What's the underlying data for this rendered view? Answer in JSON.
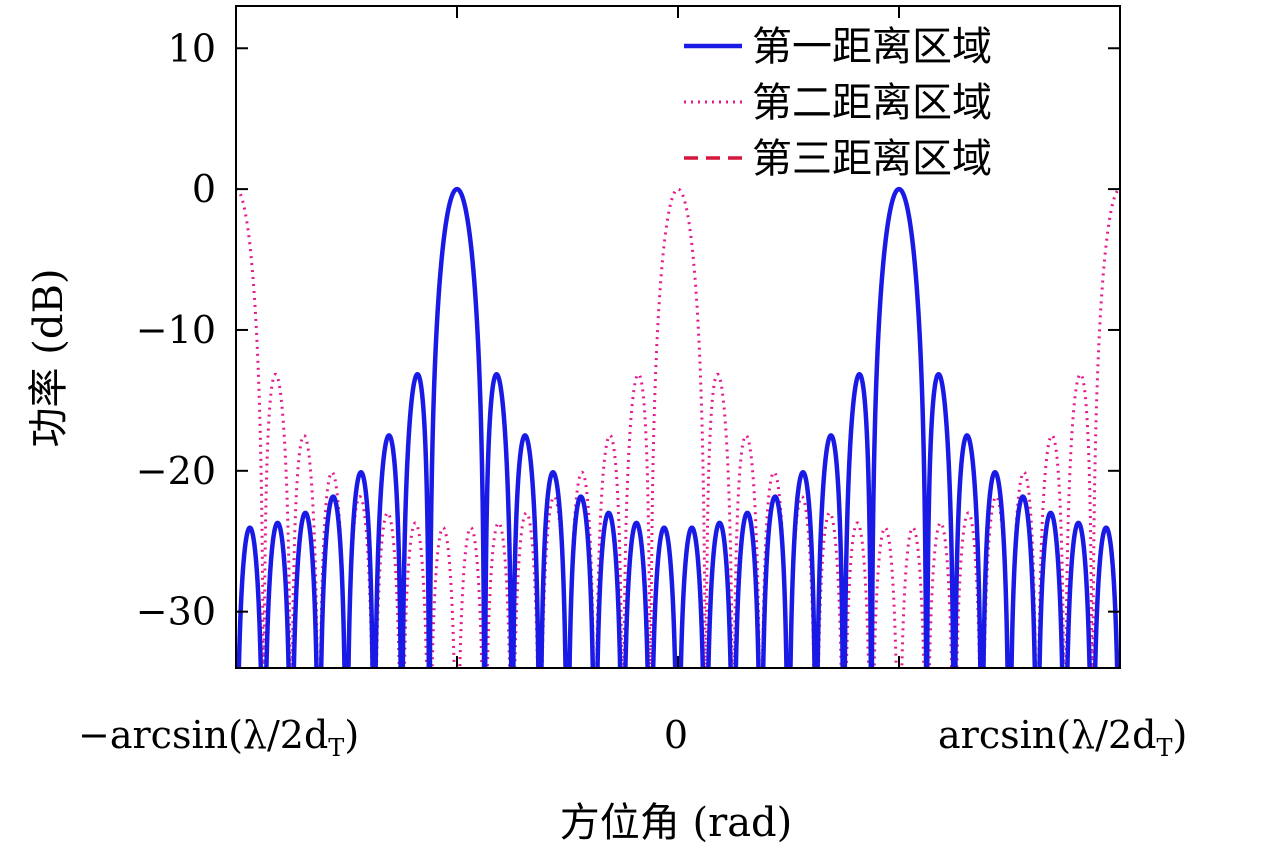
{
  "chart_data": {
    "type": "line",
    "title": "",
    "xlabel": "方位角 (rad)",
    "ylabel": "功率 (dB)",
    "x_tick_labels": {
      "left": "−arcsin(λ/2d",
      "left_sub": "T",
      "left_close": ")",
      "center": "0",
      "right": "arcsin(λ/2d",
      "right_sub": "T",
      "right_close": ")"
    },
    "xlim": [
      -1,
      1
    ],
    "ylim": [
      -34,
      13
    ],
    "y_ticks": [
      10,
      0,
      -10,
      -20,
      -30
    ],
    "y_tick_labels": [
      "10",
      "0",
      "−10",
      "−20",
      "−30"
    ],
    "x_ticks": [
      -1,
      -0.5,
      0,
      0.5,
      1
    ],
    "array_elements": 16,
    "grid": false,
    "legend_position": "top-right",
    "series": [
      {
        "name": "第一距离区域",
        "style": "solid",
        "color": "#1a1ae6",
        "peak_x": -0.5,
        "peak_db": 0
      },
      {
        "name": "第二距离区域",
        "style": "dotted",
        "color": "#e6198c",
        "peak_x": 0.0,
        "peak_db": 0
      },
      {
        "name": "第三距离区域",
        "style": "dashed",
        "color": "#d6163c",
        "peak_x": 0.5,
        "peak_db": 0
      }
    ]
  }
}
